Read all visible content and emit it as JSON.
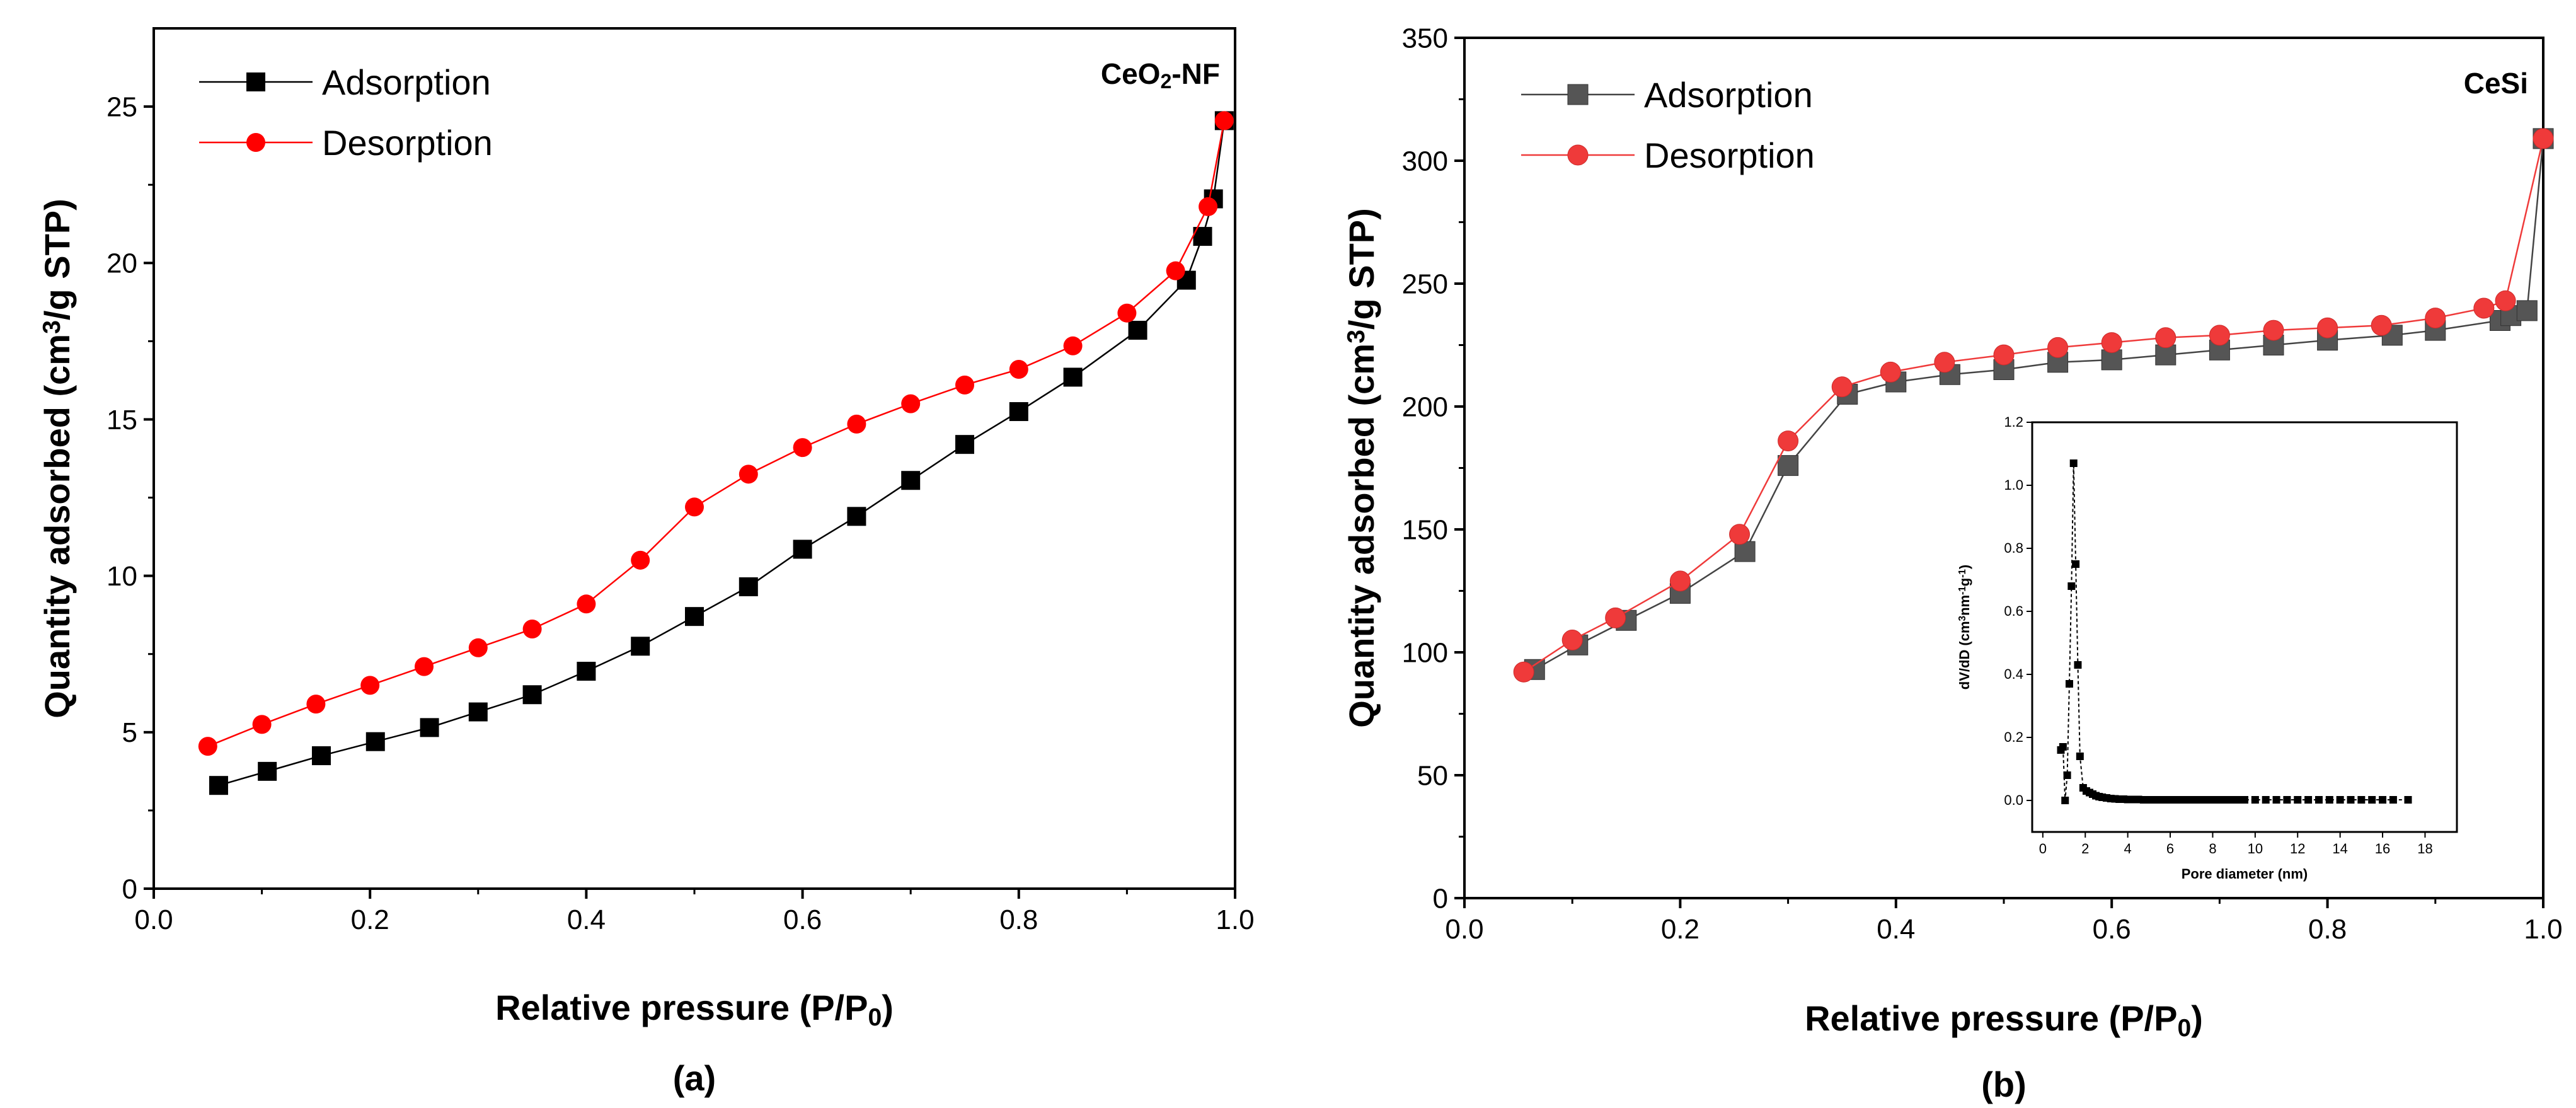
{
  "colors": {
    "adsorption": "#000000",
    "desorption": "#ff0000",
    "desorption_b": "#ef3a3a",
    "adsorption_b": "#555555",
    "axis": "#000000"
  },
  "chart_data": [
    {
      "panel": "a",
      "type": "line",
      "subplot_label": "(a)",
      "annotation": {
        "main": "CeO",
        "sub": "2",
        "tail": "-NF"
      },
      "xlabel": {
        "main": "Relative pressure (P/P",
        "sub": "0",
        "tail": ")"
      },
      "ylabel": {
        "pre": "Quantity adsorbed (cm",
        "sup": "3",
        "post": "/g STP)"
      },
      "xlim": [
        0,
        1.0
      ],
      "ylim": [
        0,
        27.5
      ],
      "x_ticks": [
        0,
        0.2,
        0.4,
        0.6,
        0.8,
        1.0
      ],
      "x_tick_labels": [
        "0.0",
        "0.2",
        "0.4",
        "0.6",
        "0.8",
        "1.0"
      ],
      "y_ticks": [
        0,
        5,
        10,
        15,
        20,
        25
      ],
      "y_tick_labels": [
        "0",
        "5",
        "10",
        "15",
        "20",
        "25"
      ],
      "legend_position": "top-left",
      "series": [
        {
          "name": "Adsorption",
          "marker": "square",
          "color_key": "adsorption",
          "x": [
            0.06,
            0.105,
            0.155,
            0.205,
            0.255,
            0.3,
            0.35,
            0.4,
            0.45,
            0.5,
            0.55,
            0.6,
            0.65,
            0.7,
            0.75,
            0.8,
            0.85,
            0.91,
            0.955,
            0.97,
            0.98,
            0.99
          ],
          "y": [
            3.3,
            3.75,
            4.25,
            4.7,
            5.15,
            5.65,
            6.2,
            6.95,
            7.75,
            8.7,
            9.65,
            10.85,
            11.9,
            13.05,
            14.2,
            15.25,
            16.35,
            17.85,
            19.45,
            20.85,
            22.05,
            24.55
          ]
        },
        {
          "name": "Desorption",
          "marker": "circle",
          "color_key": "desorption",
          "x": [
            0.05,
            0.1,
            0.15,
            0.2,
            0.25,
            0.3,
            0.35,
            0.4,
            0.45,
            0.5,
            0.55,
            0.6,
            0.65,
            0.7,
            0.75,
            0.8,
            0.85,
            0.9,
            0.945,
            0.975,
            0.99
          ],
          "y": [
            4.55,
            5.25,
            5.9,
            6.5,
            7.1,
            7.7,
            8.3,
            9.1,
            10.5,
            12.2,
            13.25,
            14.1,
            14.85,
            15.5,
            16.1,
            16.6,
            17.35,
            18.4,
            19.75,
            21.8,
            24.55
          ]
        }
      ]
    },
    {
      "panel": "b",
      "type": "line",
      "subplot_label": "(b)",
      "annotation": {
        "main": "CeSi",
        "sub": "",
        "tail": ""
      },
      "xlabel": {
        "main": "Relative pressure (P/P",
        "sub": "0",
        "tail": ")"
      },
      "ylabel": {
        "pre": "Quantity adsorbed (cm",
        "sup": "3",
        "post": "/g STP)"
      },
      "xlim": [
        0,
        1.0
      ],
      "ylim": [
        0,
        350
      ],
      "x_ticks": [
        0,
        0.2,
        0.4,
        0.6,
        0.8,
        1.0
      ],
      "x_tick_labels": [
        "0.0",
        "0.2",
        "0.4",
        "0.6",
        "0.8",
        "1.0"
      ],
      "y_ticks": [
        0,
        50,
        100,
        150,
        200,
        250,
        300,
        350
      ],
      "y_tick_labels": [
        "0",
        "50",
        "100",
        "150",
        "200",
        "250",
        "300",
        "350"
      ],
      "legend_position": "top-left",
      "series": [
        {
          "name": "Adsorption",
          "marker": "square",
          "color_key": "adsorption_b",
          "x": [
            0.065,
            0.105,
            0.15,
            0.2,
            0.26,
            0.3,
            0.355,
            0.4,
            0.45,
            0.5,
            0.55,
            0.6,
            0.65,
            0.7,
            0.75,
            0.8,
            0.86,
            0.9,
            0.96,
            0.97,
            0.985,
            1.0
          ],
          "y": [
            93,
            103,
            113,
            124,
            141,
            176,
            205,
            210,
            213,
            215,
            218,
            219,
            221,
            223,
            225,
            227,
            229,
            231,
            235,
            237,
            239,
            309
          ]
        },
        {
          "name": "Desorption",
          "marker": "circle",
          "color_key": "desorption_b",
          "x": [
            0.055,
            0.1,
            0.14,
            0.2,
            0.255,
            0.3,
            0.35,
            0.395,
            0.445,
            0.5,
            0.55,
            0.6,
            0.65,
            0.7,
            0.75,
            0.8,
            0.85,
            0.9,
            0.945,
            0.965,
            1.0
          ],
          "y": [
            92,
            105,
            114,
            129,
            148,
            186,
            208,
            214,
            218,
            221,
            224,
            226,
            228,
            229,
            231,
            232,
            233,
            236,
            240,
            243,
            309
          ]
        }
      ],
      "inset": {
        "type": "scatter",
        "xlabel": "Pore diameter (nm)",
        "ylabel": {
          "pre": "dV/dD (cm",
          "sup1": "3",
          "mid1": "nm",
          "sup2": "-1",
          "mid2": "g",
          "sup3": "-1",
          "post": ")"
        },
        "xlim": [
          -0.5,
          19.5
        ],
        "ylim": [
          -0.1,
          1.2
        ],
        "x_ticks": [
          0,
          2,
          4,
          6,
          8,
          10,
          12,
          14,
          16,
          18
        ],
        "x_tick_labels": [
          "0",
          "2",
          "4",
          "6",
          "8",
          "10",
          "12",
          "14",
          "16",
          "18"
        ],
        "y_ticks": [
          0.0,
          0.2,
          0.4,
          0.6,
          0.8,
          1.0,
          1.2
        ],
        "y_tick_labels": [
          "0.0",
          "0.2",
          "0.4",
          "0.6",
          "0.8",
          "1.0",
          "1.2"
        ],
        "series": [
          {
            "name": "dV/dD",
            "x": [
              0.85,
              0.95,
              1.05,
              1.15,
              1.25,
              1.35,
              1.45,
              1.55,
              1.65,
              1.75,
              1.9,
              2.05,
              2.2,
              2.35,
              2.5,
              2.65,
              2.8,
              3.0,
              3.2,
              3.4,
              3.6,
              3.8,
              4.0,
              4.25,
              4.5,
              4.75,
              5.0,
              5.25,
              5.5,
              5.75,
              6.0,
              6.25,
              6.5,
              6.75,
              7.0,
              7.25,
              7.5,
              7.75,
              8.0,
              8.25,
              8.5,
              8.75,
              9.0,
              9.25,
              9.5,
              10.0,
              10.5,
              11.0,
              11.5,
              12.0,
              12.5,
              13.0,
              13.5,
              14.0,
              14.5,
              15.0,
              15.5,
              16.0,
              16.5,
              17.2
            ],
            "y": [
              0.16,
              0.17,
              0.0,
              0.08,
              0.37,
              0.68,
              1.07,
              0.75,
              0.43,
              0.14,
              0.04,
              0.03,
              0.025,
              0.02,
              0.015,
              0.012,
              0.01,
              0.008,
              0.006,
              0.005,
              0.004,
              0.004,
              0.003,
              0.003,
              0.003,
              0.002,
              0.002,
              0.002,
              0.002,
              0.002,
              0.002,
              0.002,
              0.002,
              0.002,
              0.002,
              0.002,
              0.002,
              0.002,
              0.002,
              0.002,
              0.002,
              0.002,
              0.002,
              0.002,
              0.002,
              0.002,
              0.002,
              0.002,
              0.002,
              0.002,
              0.002,
              0.002,
              0.002,
              0.002,
              0.002,
              0.002,
              0.002,
              0.002,
              0.002,
              0.002
            ]
          }
        ]
      }
    }
  ]
}
